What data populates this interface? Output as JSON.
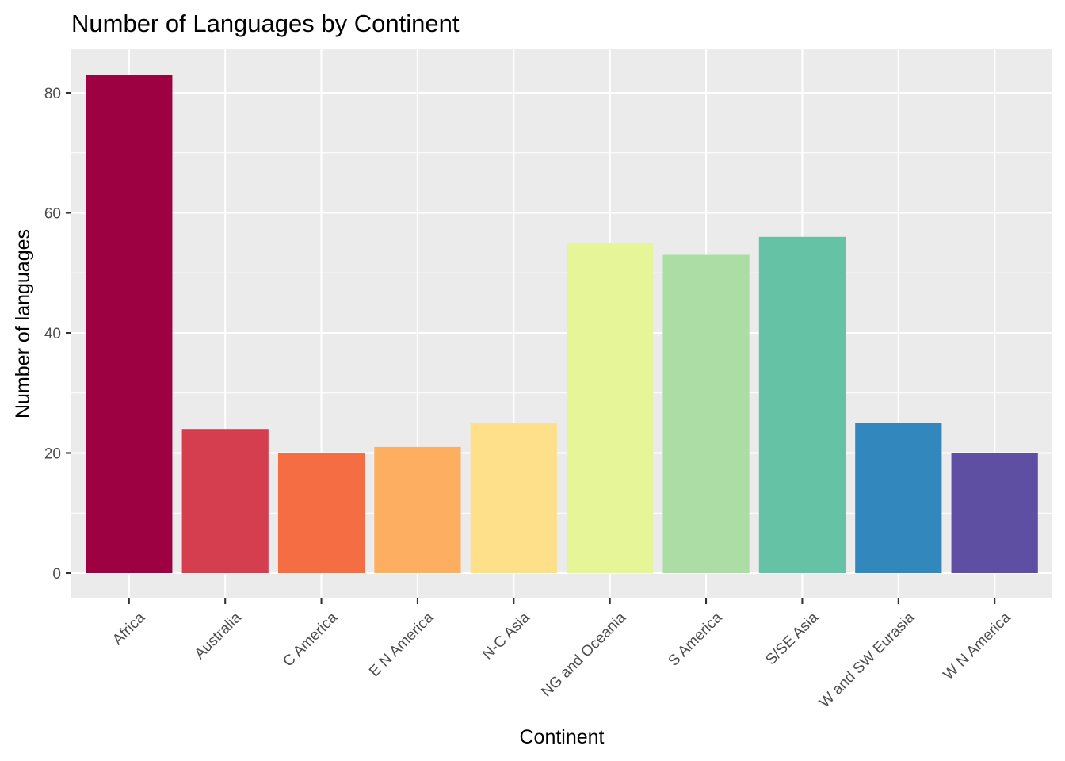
{
  "chart_data": {
    "type": "bar",
    "title": "Number of Languages by Continent",
    "xlabel": "Continent",
    "ylabel": "Number of languages",
    "categories": [
      "Africa",
      "Australia",
      "C America",
      "E N America",
      "N-C Asia",
      "NG and Oceania",
      "S America",
      "S/SE Asia",
      "W and SW Eurasia",
      "W N America"
    ],
    "values": [
      83,
      24,
      20,
      21,
      25,
      55,
      53,
      56,
      25,
      20
    ],
    "colors": [
      "#9e0142",
      "#d53e4f",
      "#f46d43",
      "#fdae61",
      "#fee08b",
      "#e6f598",
      "#abdda4",
      "#66c2a5",
      "#3288bd",
      "#5e4fa2"
    ],
    "ylim": [
      0,
      87
    ],
    "yticks": [
      0,
      20,
      40,
      60,
      80
    ],
    "grid": true,
    "panel_background": "#ebebeb",
    "legend": "none"
  }
}
